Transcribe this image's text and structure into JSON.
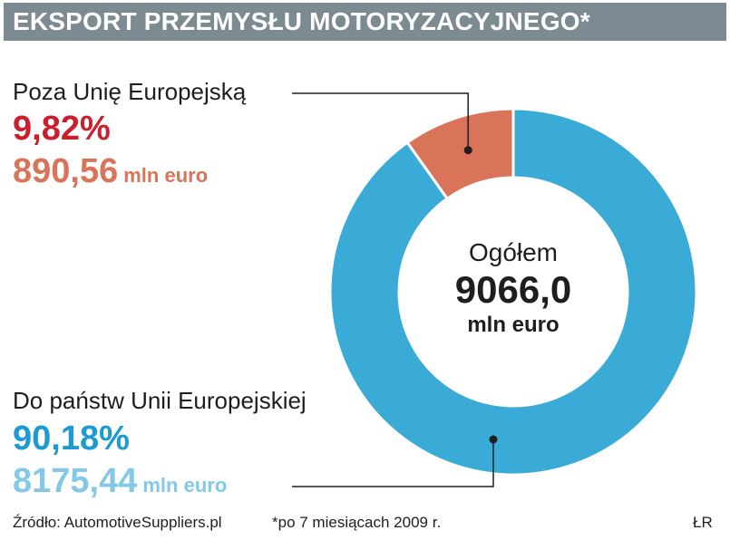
{
  "title": "EKSPORT PRZEMYSŁU MOTORYZACYJNEGO*",
  "colors": {
    "title_bar": "#7c8a92",
    "eu_slice": "#3aaad6",
    "non_eu_slice": "#d9735a",
    "non_eu_pct": "#c8202f",
    "non_eu_value": "#d9735a",
    "eu_pct": "#1b9bd1",
    "eu_value": "#84c8e8"
  },
  "segments": {
    "non_eu": {
      "name": "Poza Unię Europejską",
      "percent": "9,82%",
      "value": "890,56",
      "unit": "mln euro"
    },
    "eu": {
      "name": "Do państw Unii Europejskiej",
      "percent": "90,18%",
      "value": "8175,44",
      "unit": "mln euro"
    }
  },
  "center": {
    "label": "Ogółem",
    "value": "9066,0",
    "unit": "mln euro"
  },
  "footer": {
    "source": "Źródło: AutomotiveSuppliers.pl",
    "note": "*po 7 miesiącach 2009 r.",
    "author": "ŁR"
  },
  "chart_data": {
    "type": "pie",
    "categories": [
      "Poza Unię Europejską",
      "Do państw Unii Europejskiej"
    ],
    "values": [
      9.82,
      90.18
    ],
    "amounts": [
      890.56,
      8175.44
    ],
    "total": 9066.0,
    "title": "EKSPORT PRZEMYSŁU MOTORYZACYJNEGO*"
  }
}
